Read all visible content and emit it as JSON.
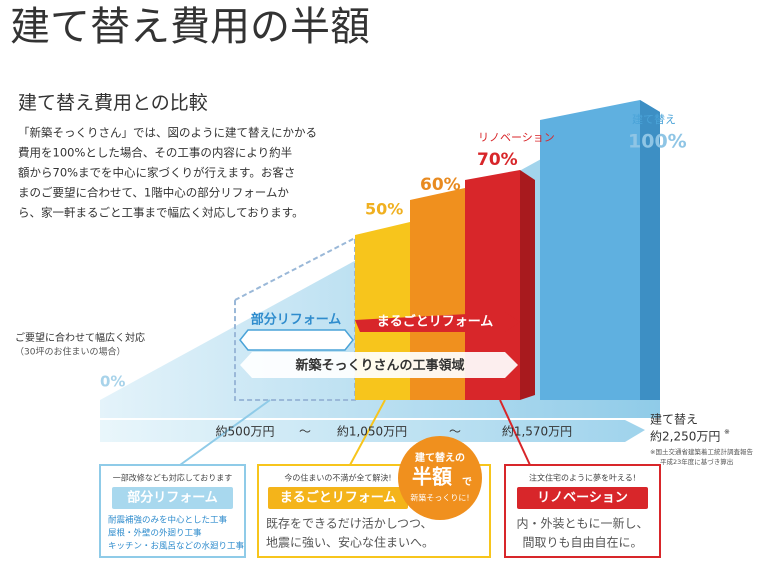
{
  "header": {
    "title": "建て替え費用の半額",
    "subtitle": "建て替え費用との比較"
  },
  "intro": [
    "「新築そっくりさん」では、図のように建て替えにかかる",
    "費用を100%とした場合、その工事の内容により約半",
    "額から70%までを中心に家づくりが行えます。お客さ",
    "まのご要望に合わせて、1階中心の部分リフォームか",
    "ら、家一軒まるごと工事まで幅広く対応しております。"
  ],
  "diagram": {
    "side_note": [
      "ご要望に合わせて幅広く対応",
      "（30坪のお住まいの場合）"
    ],
    "levels": {
      "zero": "0%",
      "fifty": "50%",
      "sixty": "60%",
      "seventy": "70%",
      "hundred": "100%"
    },
    "renovation_label": "リノベーション",
    "rebuild_label": "建て替え",
    "partial": "部分リフォーム",
    "whole": "まるごとリフォーム",
    "scope": "新築そっくりさんの工事領域",
    "costs": [
      "約500万円",
      "～",
      "約1,050万円",
      "～",
      "約1,570万円"
    ],
    "rebuild_cost": [
      "建て替え",
      "約2,250万円",
      "※"
    ],
    "source": [
      "※国土交通省建築着工統計調査報告",
      "平成23年度に基づき算出"
    ]
  },
  "cards": [
    {
      "lead": "一部改修なども対応しております",
      "badge": "部分リフォーム",
      "lines": [
        "耐震補強のみを中心とした工事",
        "屋根・外壁の外廻り工事",
        "キッチン・お風呂などの水廻り工事"
      ]
    },
    {
      "lead": "今の住まいの不満が全て解決!",
      "badge": "まるごとリフォーム",
      "lines": [
        "既存をできるだけ活かしつつ、",
        "地震に強い、安心な住まいへ。"
      ]
    },
    {
      "lead": "注文住宅のように夢を叶える!",
      "badge": "リノベーション",
      "lines": [
        "内・外装ともに一新し、",
        "間取りも自由自在に。"
      ]
    }
  ],
  "badge_circle": [
    "建て替えの",
    "半額",
    "で",
    "新築そっくりに!"
  ]
}
